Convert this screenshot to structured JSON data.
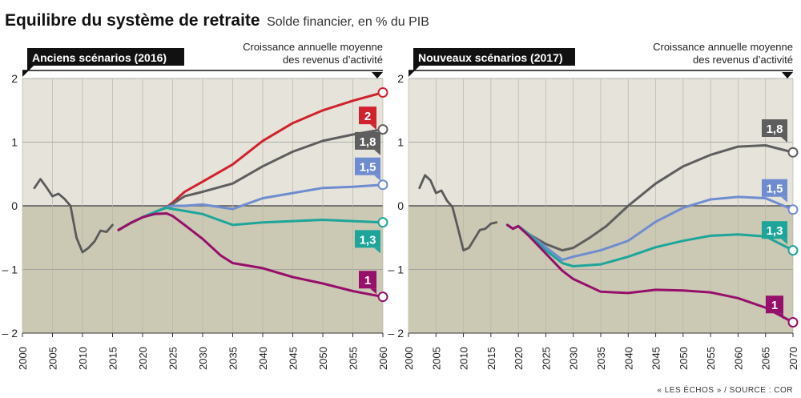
{
  "header": {
    "title": "Equilibre du système de retraite",
    "subtitle": "Solde financier, en % du PIB"
  },
  "source": "« LES ÉCHOS » / SOURCE : COR",
  "colors": {
    "plot_bg": "#e5e3da",
    "negative_bg": "#cbc8b4",
    "history": "#5a5a5a",
    "s1": "#960f6a",
    "s13": "#1ea59a",
    "s15": "#6f8cd0",
    "s18": "#5e5e5e",
    "s2": "#d0232e"
  },
  "chart_data": [
    {
      "type": "line",
      "title": "Anciens scénarios (2016)",
      "legend_title": "Croissance annuelle moyenne des revenus d’activité",
      "legend_placement": "right",
      "ylim": [
        -2,
        2
      ],
      "xlim": [
        2000,
        2060
      ],
      "yticks": [
        2,
        1,
        0,
        -1,
        -2
      ],
      "ytick_labels": [
        "2",
        "1",
        "0",
        "– 1",
        "– 2"
      ],
      "xticks": [
        2000,
        2005,
        2010,
        2015,
        2020,
        2025,
        2030,
        2035,
        2040,
        2045,
        2050,
        2055,
        2060
      ],
      "grid": true,
      "history": {
        "x": [
          2002,
          2003,
          2004,
          2005,
          2006,
          2007,
          2008,
          2009,
          2010,
          2011,
          2012,
          2013,
          2014,
          2015
        ],
        "y": [
          0.28,
          0.42,
          0.29,
          0.15,
          0.19,
          0.11,
          0.0,
          -0.5,
          -0.73,
          -0.66,
          -0.56,
          -0.39,
          -0.41,
          -0.3
        ]
      },
      "series": [
        {
          "name": "2",
          "color_key": "s2",
          "x": [
            2016,
            2018,
            2020,
            2022,
            2024,
            2025,
            2027,
            2030,
            2035,
            2040,
            2045,
            2050,
            2055,
            2060
          ],
          "y": [
            -0.38,
            -0.27,
            -0.18,
            -0.1,
            -0.02,
            0.05,
            0.22,
            0.38,
            0.65,
            1.02,
            1.3,
            1.5,
            1.65,
            1.78
          ]
        },
        {
          "name": "1,8",
          "color_key": "s18",
          "x": [
            2016,
            2018,
            2020,
            2022,
            2024,
            2025,
            2027,
            2030,
            2035,
            2040,
            2045,
            2050,
            2055,
            2060
          ],
          "y": [
            -0.38,
            -0.27,
            -0.18,
            -0.1,
            -0.02,
            0.03,
            0.15,
            0.22,
            0.35,
            0.62,
            0.85,
            1.02,
            1.12,
            1.2
          ]
        },
        {
          "name": "1,5",
          "color_key": "s15",
          "x": [
            2016,
            2018,
            2020,
            2022,
            2024,
            2025,
            2027,
            2030,
            2035,
            2040,
            2045,
            2050,
            2055,
            2060
          ],
          "y": [
            -0.38,
            -0.27,
            -0.18,
            -0.1,
            -0.02,
            0.0,
            0.0,
            0.02,
            -0.05,
            0.12,
            0.2,
            0.28,
            0.3,
            0.33
          ]
        },
        {
          "name": "1,3",
          "color_key": "s13",
          "x": [
            2016,
            2018,
            2020,
            2022,
            2024,
            2025,
            2027,
            2030,
            2035,
            2040,
            2045,
            2050,
            2055,
            2060
          ],
          "y": [
            -0.38,
            -0.27,
            -0.18,
            -0.1,
            -0.03,
            -0.05,
            -0.08,
            -0.13,
            -0.3,
            -0.26,
            -0.24,
            -0.22,
            -0.24,
            -0.26
          ]
        },
        {
          "name": "1",
          "color_key": "s1",
          "x": [
            2016,
            2018,
            2020,
            2022,
            2024,
            2025,
            2027,
            2030,
            2033,
            2035,
            2040,
            2045,
            2050,
            2055,
            2060
          ],
          "y": [
            -0.38,
            -0.27,
            -0.18,
            -0.13,
            -0.12,
            -0.16,
            -0.3,
            -0.52,
            -0.78,
            -0.9,
            -0.98,
            -1.12,
            -1.22,
            -1.34,
            -1.43
          ]
        }
      ]
    },
    {
      "type": "line",
      "title": "Nouveaux scénarios (2017)",
      "legend_title": "Croissance annuelle moyenne des revenus d’activité",
      "legend_placement": "right",
      "ylim": [
        -2,
        2
      ],
      "xlim": [
        2000,
        2070
      ],
      "yticks": [
        2,
        1,
        0,
        -1,
        -2
      ],
      "ytick_labels": [
        "2",
        "1",
        "0",
        "– 1",
        "– 2"
      ],
      "xticks": [
        2000,
        2005,
        2010,
        2015,
        2020,
        2025,
        2030,
        2035,
        2040,
        2045,
        2050,
        2055,
        2060,
        2065,
        2070
      ],
      "grid": true,
      "history": {
        "x": [
          2002,
          2003,
          2004,
          2005,
          2006,
          2007,
          2008,
          2009,
          2010,
          2011,
          2012,
          2013,
          2014,
          2015,
          2016
        ],
        "y": [
          0.28,
          0.48,
          0.4,
          0.2,
          0.24,
          0.08,
          -0.02,
          -0.35,
          -0.7,
          -0.66,
          -0.52,
          -0.38,
          -0.36,
          -0.28,
          -0.26
        ]
      },
      "series": [
        {
          "name": "1,8",
          "color_key": "s18",
          "x": [
            2018,
            2019,
            2020,
            2022,
            2025,
            2028,
            2030,
            2033,
            2036,
            2040,
            2045,
            2050,
            2055,
            2060,
            2065,
            2070
          ],
          "y": [
            -0.3,
            -0.36,
            -0.32,
            -0.45,
            -0.6,
            -0.7,
            -0.66,
            -0.5,
            -0.32,
            0.0,
            0.35,
            0.62,
            0.8,
            0.93,
            0.95,
            0.84
          ]
        },
        {
          "name": "1,5",
          "color_key": "s15",
          "x": [
            2018,
            2019,
            2020,
            2022,
            2025,
            2028,
            2030,
            2035,
            2040,
            2045,
            2050,
            2055,
            2060,
            2065,
            2070
          ],
          "y": [
            -0.3,
            -0.36,
            -0.32,
            -0.45,
            -0.65,
            -0.85,
            -0.8,
            -0.7,
            -0.55,
            -0.25,
            -0.03,
            0.1,
            0.14,
            0.12,
            -0.06
          ]
        },
        {
          "name": "1,3",
          "color_key": "s13",
          "x": [
            2018,
            2019,
            2020,
            2022,
            2025,
            2028,
            2030,
            2035,
            2040,
            2045,
            2050,
            2055,
            2060,
            2065,
            2070
          ],
          "y": [
            -0.3,
            -0.36,
            -0.32,
            -0.45,
            -0.7,
            -0.9,
            -0.95,
            -0.92,
            -0.8,
            -0.65,
            -0.55,
            -0.47,
            -0.45,
            -0.48,
            -0.7
          ]
        },
        {
          "name": "1",
          "color_key": "s1",
          "x": [
            2018,
            2019,
            2020,
            2022,
            2025,
            2028,
            2030,
            2035,
            2040,
            2045,
            2050,
            2055,
            2060,
            2065,
            2070
          ],
          "y": [
            -0.3,
            -0.36,
            -0.32,
            -0.48,
            -0.75,
            -1.02,
            -1.15,
            -1.35,
            -1.37,
            -1.32,
            -1.33,
            -1.36,
            -1.45,
            -1.6,
            -1.83
          ]
        }
      ]
    }
  ]
}
